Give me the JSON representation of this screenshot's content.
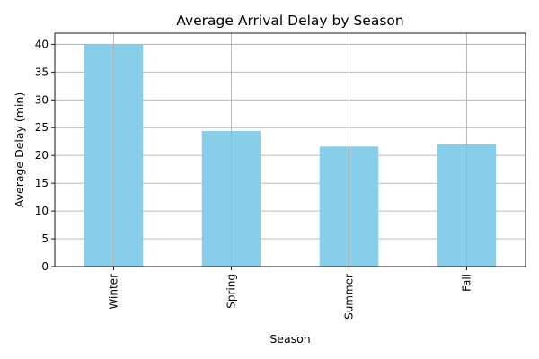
{
  "chart_data": {
    "type": "bar",
    "title": "Average Arrival Delay by Season",
    "xlabel": "Season",
    "ylabel": "Average Delay (min)",
    "categories": [
      "Winter",
      "Spring",
      "Summer",
      "Fall"
    ],
    "values": [
      40.0,
      24.4,
      21.6,
      22.0
    ],
    "ylim": [
      0,
      42
    ],
    "yticks": [
      0,
      5,
      10,
      15,
      20,
      25,
      30,
      35,
      40
    ],
    "grid": true,
    "bar_color": "#87ceeb",
    "grid_color": "#b0b0b0"
  }
}
